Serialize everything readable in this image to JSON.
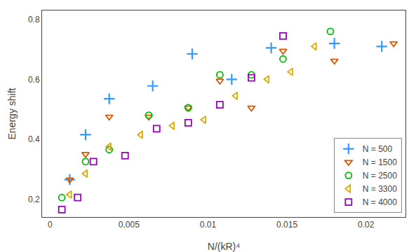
{
  "chart_data": {
    "type": "scatter",
    "xlabel": "N/(kR)⁴",
    "ylabel": "Energy shift",
    "xlim": [
      -0.0005,
      0.0225
    ],
    "ylim": [
      0.14,
      0.83
    ],
    "xticks": [
      0,
      0.005,
      0.01,
      0.015,
      0.02
    ],
    "yticks": [
      0.2,
      0.4,
      0.6,
      0.8
    ],
    "grid": false,
    "legend": "lower right",
    "series": [
      {
        "name": "N = 500",
        "color": "#3399ff",
        "marker": "plus",
        "x": [
          0.00125,
          0.00225,
          0.00375,
          0.0065,
          0.009,
          0.0115,
          0.014,
          0.018,
          0.021
        ],
        "values": [
          0.265,
          0.415,
          0.535,
          0.578,
          0.685,
          0.6,
          0.705,
          0.72,
          0.71
        ]
      },
      {
        "name": "N = 1500",
        "color": "#dd5500",
        "marker": "triangle-down",
        "x": [
          0.00125,
          0.00225,
          0.00375,
          0.00625,
          0.00875,
          0.01075,
          0.01275,
          0.01475,
          0.018,
          0.02175
        ],
        "values": [
          0.265,
          0.35,
          0.475,
          0.475,
          0.505,
          0.595,
          0.505,
          0.695,
          0.662,
          0.72
        ]
      },
      {
        "name": "N = 2500",
        "color": "#00bb00",
        "marker": "circle",
        "x": [
          0.00075,
          0.00225,
          0.00375,
          0.00625,
          0.00875,
          0.01075,
          0.01275,
          0.01475,
          0.01775
        ],
        "values": [
          0.205,
          0.325,
          0.365,
          0.48,
          0.505,
          0.615,
          0.615,
          0.668,
          0.76
        ]
      },
      {
        "name": "N = 3300",
        "color": "#ddaa00",
        "marker": "triangle-left",
        "x": [
          0.00125,
          0.00225,
          0.00375,
          0.00575,
          0.00775,
          0.00975,
          0.01175,
          0.01375,
          0.01525,
          0.01675
        ],
        "values": [
          0.215,
          0.285,
          0.375,
          0.415,
          0.445,
          0.465,
          0.545,
          0.6,
          0.625,
          0.71
        ]
      },
      {
        "name": "N = 4000",
        "color": "#9900bb",
        "marker": "square",
        "x": [
          0.00075,
          0.00175,
          0.00275,
          0.00475,
          0.00675,
          0.00875,
          0.01075,
          0.01275,
          0.01475
        ],
        "values": [
          0.165,
          0.205,
          0.325,
          0.345,
          0.435,
          0.455,
          0.515,
          0.605,
          0.745
        ]
      }
    ]
  }
}
